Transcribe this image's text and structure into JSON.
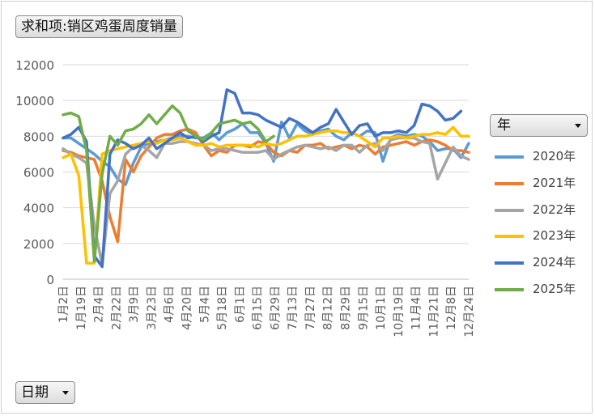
{
  "pivot": {
    "value_field": "求和项:销区鸡蛋周度销量",
    "legend_field": "年",
    "axis_field": "日期"
  },
  "chart_data": {
    "type": "line",
    "title": "",
    "xlabel": "",
    "ylabel": "",
    "ylim": [
      0,
      12000
    ],
    "yticks": [
      0,
      2000,
      4000,
      6000,
      8000,
      10000,
      12000
    ],
    "grid": true,
    "legend_position": "right",
    "categories": [
      "1月2日",
      "1月19日",
      "2月4日",
      "2月22日",
      "3月9日",
      "3月23日",
      "4月6日",
      "4月20日",
      "5月4日",
      "5月18日",
      "6月1日",
      "6月15日",
      "6月29日",
      "7月13日",
      "7月27日",
      "8月12日",
      "8月29日",
      "9月15日",
      "10月1日",
      "10月19日",
      "11月4日",
      "11月21日",
      "12月8日",
      "12月24日"
    ],
    "x_count": 53,
    "series": [
      {
        "name": "2020年",
        "color": "#5b9bd5",
        "x": [
          0,
          1,
          2,
          3,
          4,
          5,
          6,
          7,
          8,
          9,
          10,
          11,
          12,
          13,
          14,
          15,
          16,
          17,
          18,
          19,
          20,
          21,
          22,
          23,
          24,
          25,
          26,
          27,
          28,
          29,
          30,
          31,
          32,
          33,
          34,
          35,
          36,
          37,
          38,
          39,
          40,
          41,
          42,
          43,
          44,
          45,
          46,
          47,
          48,
          49,
          50,
          51,
          52
        ],
        "values": [
          7900,
          7900,
          7600,
          7300,
          7000,
          6600,
          6300,
          5600,
          5300,
          6500,
          7400,
          7600,
          7700,
          7800,
          7900,
          8000,
          8000,
          7900,
          7900,
          8200,
          7800,
          8200,
          8400,
          8700,
          8200,
          8200,
          7600,
          6600,
          8800,
          7900,
          8700,
          8300,
          8100,
          8300,
          8400,
          8000,
          7800,
          8200,
          8000,
          8300,
          8200,
          6600,
          7900,
          8100,
          8000,
          8100,
          8000,
          7700,
          7200,
          7300,
          7300,
          6800,
          7600
        ]
      },
      {
        "name": "2021年",
        "color": "#ed7d31",
        "x": [
          0,
          1,
          2,
          3,
          4,
          5,
          6,
          7,
          8,
          9,
          10,
          11,
          12,
          13,
          14,
          15,
          16,
          17,
          18,
          19,
          20,
          21,
          22,
          23,
          24,
          25,
          26,
          27,
          28,
          29,
          30,
          31,
          32,
          33,
          34,
          35,
          36,
          37,
          38,
          39,
          40,
          41,
          42,
          43,
          44,
          45,
          46,
          47,
          48,
          49,
          50,
          51,
          52
        ],
        "values": [
          7200,
          7100,
          6900,
          6800,
          6700,
          5500,
          3500,
          2100,
          6700,
          6000,
          6900,
          7400,
          7900,
          8100,
          8100,
          8300,
          8400,
          8200,
          7500,
          6900,
          7200,
          7100,
          7500,
          7500,
          7400,
          7700,
          7600,
          7100,
          6900,
          7200,
          7100,
          7500,
          7500,
          7600,
          7300,
          7400,
          7500,
          7300,
          7500,
          7400,
          7000,
          7400,
          7500,
          7600,
          7700,
          7500,
          7700,
          7800,
          7700,
          7500,
          7200,
          7200,
          7100
        ]
      },
      {
        "name": "2022年",
        "color": "#a5a5a5",
        "x": [
          0,
          1,
          2,
          3,
          4,
          5,
          6,
          7,
          8,
          9,
          10,
          11,
          12,
          13,
          14,
          15,
          16,
          17,
          18,
          19,
          20,
          21,
          22,
          23,
          24,
          25,
          26,
          27,
          28,
          29,
          30,
          31,
          32,
          33,
          34,
          35,
          36,
          37,
          38,
          39,
          40,
          41,
          42,
          43,
          44,
          45,
          46,
          47,
          48,
          49,
          50,
          51,
          52
        ],
        "values": [
          7300,
          7000,
          6800,
          6500,
          3000,
          800,
          4800,
          5500,
          7000,
          7400,
          7500,
          7200,
          6800,
          7600,
          7600,
          7700,
          7700,
          7600,
          7500,
          7200,
          7300,
          7300,
          7200,
          7100,
          7100,
          7100,
          7200,
          6700,
          7000,
          7200,
          7400,
          7500,
          7400,
          7300,
          7400,
          7200,
          7500,
          7500,
          7100,
          7500,
          7600,
          7200,
          7800,
          7900,
          7900,
          7900,
          7700,
          7600,
          5600,
          6500,
          7400,
          6900,
          6700
        ]
      },
      {
        "name": "2023年",
        "color": "#ffc000",
        "x": [
          0,
          1,
          2,
          3,
          4,
          5,
          6,
          7,
          8,
          9,
          10,
          11,
          12,
          13,
          14,
          15,
          16,
          17,
          18,
          19,
          20,
          21,
          22,
          23,
          24,
          25,
          26,
          27,
          28,
          29,
          30,
          31,
          32,
          33,
          34,
          35,
          36,
          37,
          38,
          39,
          40,
          41,
          42,
          43,
          44,
          45,
          46,
          47,
          48,
          49,
          50,
          51,
          52
        ],
        "values": [
          6800,
          7000,
          5800,
          900,
          900,
          7000,
          7200,
          7300,
          7400,
          7500,
          7600,
          7700,
          7600,
          7800,
          7800,
          7900,
          7700,
          7500,
          7500,
          7600,
          7400,
          7500,
          7500,
          7500,
          7500,
          7400,
          7600,
          7500,
          7600,
          7800,
          8000,
          8000,
          8100,
          8200,
          8300,
          8300,
          8200,
          8200,
          8000,
          7700,
          7400,
          7900,
          7900,
          8000,
          7900,
          8000,
          8100,
          8100,
          8200,
          8100,
          8500,
          8000,
          8000
        ]
      },
      {
        "name": "2024年",
        "color": "#4472c4",
        "x": [
          0,
          1,
          2,
          3,
          4,
          5,
          6,
          7,
          8,
          9,
          10,
          11,
          12,
          13,
          14,
          15,
          16,
          17,
          18,
          19,
          20,
          21,
          22,
          23,
          24,
          25,
          26,
          27,
          28,
          29,
          30,
          31,
          32,
          33,
          34,
          35,
          36,
          37,
          38,
          39,
          40,
          41,
          42,
          43,
          44,
          45,
          46,
          47,
          48,
          49,
          50,
          51,
          52
        ],
        "values": [
          7900,
          8100,
          8500,
          7700,
          1300,
          700,
          7000,
          7800,
          7600,
          7300,
          7500,
          7900,
          7300,
          7600,
          7900,
          8200,
          7900,
          8000,
          7700,
          8000,
          8200,
          10600,
          10400,
          9300,
          9300,
          9200,
          8900,
          8700,
          8500,
          9000,
          8800,
          8500,
          8200,
          8500,
          8700,
          9500,
          8800,
          8100,
          8600,
          8700,
          8000,
          8200,
          8200,
          8300,
          8200,
          8600,
          9800,
          9700,
          9400,
          8900,
          9000,
          9400,
          null
        ]
      },
      {
        "name": "2025年",
        "color": "#70ad47",
        "x": [
          0,
          1,
          2,
          3,
          4,
          5,
          6,
          7,
          8,
          9,
          10,
          11,
          12,
          13,
          14,
          15,
          16,
          17,
          18,
          19,
          20,
          21,
          22,
          23,
          24,
          25,
          26,
          27
        ],
        "values": [
          9200,
          9300,
          9100,
          7200,
          1000,
          5900,
          8000,
          7500,
          8300,
          8400,
          8700,
          9200,
          8700,
          9200,
          9700,
          9300,
          8300,
          8000,
          7800,
          8200,
          8700,
          8800,
          8900,
          8700,
          8800,
          8400,
          7700,
          8000
        ]
      }
    ]
  }
}
